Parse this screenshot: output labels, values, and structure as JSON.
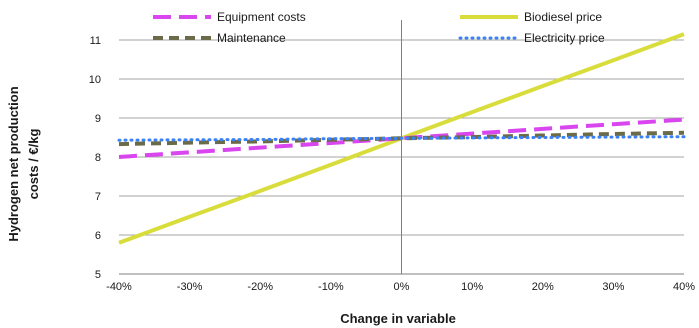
{
  "chart_data": {
    "type": "line",
    "x": [
      "-40%",
      "-30%",
      "-20%",
      "-10%",
      "0%",
      "10%",
      "20%",
      "30%",
      "40%"
    ],
    "x_values": [
      -40,
      -30,
      -20,
      -10,
      0,
      10,
      20,
      30,
      40
    ],
    "xlabel": "Change in variable",
    "ylabel_lines": [
      "Hydrogen net production",
      "costs  / €/kg"
    ],
    "ylim": [
      5,
      11
    ],
    "xlim": [
      -40,
      40
    ],
    "y_ticks": [
      5,
      6,
      7,
      8,
      9,
      10,
      11
    ],
    "grid": "horizontal",
    "legend_position": "top",
    "series": [
      {
        "name": "Equipment costs",
        "color": "#d946ef",
        "style": "long-dash",
        "values": [
          8.0,
          8.12,
          8.24,
          8.36,
          8.48,
          8.6,
          8.72,
          8.84,
          8.96
        ]
      },
      {
        "name": "Biodiesel price",
        "color": "#d9dd3c",
        "style": "solid",
        "values": [
          5.8,
          6.47,
          7.13,
          7.8,
          8.48,
          9.15,
          9.82,
          10.48,
          11.15
        ]
      },
      {
        "name": "Maintenance",
        "color": "#6b6b4a",
        "style": "dash",
        "values": [
          8.33,
          8.37,
          8.4,
          8.44,
          8.48,
          8.51,
          8.55,
          8.59,
          8.62
        ]
      },
      {
        "name": "Electricity price",
        "color": "#3b82f6",
        "style": "dotted",
        "values": [
          8.43,
          8.44,
          8.45,
          8.47,
          8.48,
          8.49,
          8.5,
          8.51,
          8.52
        ]
      }
    ]
  }
}
